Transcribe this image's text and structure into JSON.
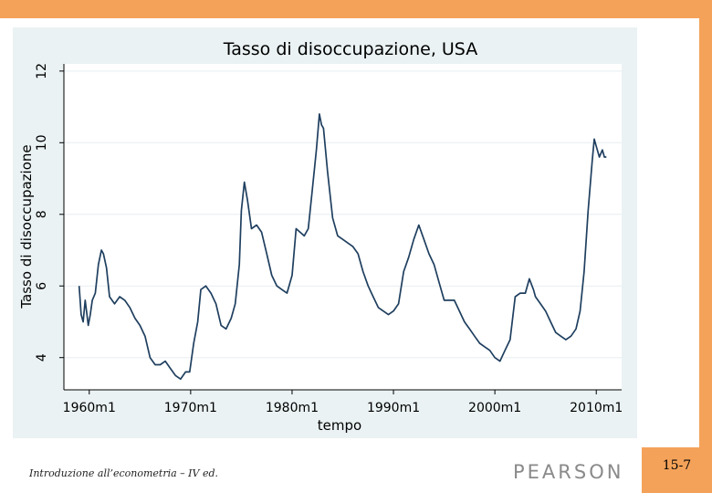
{
  "slide": {
    "footer": "Introduzione all’econometria – IV ed.",
    "publisher": "PEARSON",
    "page_number": "15-7",
    "accent_color": "#f4a259"
  },
  "chart_data": {
    "type": "line",
    "title": "Tasso di disoccupazione, USA",
    "xlabel": "tempo",
    "ylabel": "Tasso di disoccupazione",
    "x_ticks": [
      "1960m1",
      "1970m1",
      "1980m1",
      "1990m1",
      "2000m1",
      "2010m1"
    ],
    "x_tick_values": [
      1960,
      1970,
      1980,
      1990,
      2000,
      2010
    ],
    "y_ticks": [
      "4",
      "6",
      "8",
      "10",
      "12"
    ],
    "y_tick_values": [
      4,
      6,
      8,
      10,
      12
    ],
    "xlim": [
      1957.5,
      2012.5
    ],
    "ylim": [
      3.1,
      12.2
    ],
    "grid": true,
    "line_color": "#1f3f5f",
    "series": [
      {
        "x": [
          1959.0,
          1959.2,
          1959.4,
          1959.6,
          1959.9,
          1960.1,
          1960.3,
          1960.6,
          1960.9,
          1961.2,
          1961.4,
          1961.7,
          1962.0,
          1962.5,
          1963.0,
          1963.5,
          1964.0,
          1964.5,
          1965.0,
          1965.5,
          1966.0,
          1966.5,
          1967.0,
          1967.5,
          1968.0,
          1968.5,
          1969.0,
          1969.5,
          1969.9,
          1970.3,
          1970.7,
          1971.0,
          1971.5,
          1972.0,
          1972.5,
          1973.0,
          1973.5,
          1974.0,
          1974.4,
          1974.8,
          1975.0,
          1975.3,
          1975.6,
          1976.0,
          1976.5,
          1977.0,
          1977.5,
          1978.0,
          1978.5,
          1979.0,
          1979.5,
          1980.0,
          1980.4,
          1980.8,
          1981.2,
          1981.6,
          1982.0,
          1982.4,
          1982.7,
          1982.9,
          1983.1,
          1983.5,
          1984.0,
          1984.5,
          1985.0,
          1985.5,
          1986.0,
          1986.5,
          1987.0,
          1987.5,
          1988.0,
          1988.5,
          1989.0,
          1989.5,
          1990.0,
          1990.5,
          1991.0,
          1991.5,
          1992.0,
          1992.5,
          1993.0,
          1993.5,
          1994.0,
          1994.5,
          1995.0,
          1995.5,
          1996.0,
          1996.5,
          1997.0,
          1997.5,
          1998.0,
          1998.5,
          1999.0,
          1999.5,
          2000.0,
          2000.5,
          2001.0,
          2001.5,
          2002.0,
          2002.5,
          2003.0,
          2003.4,
          2003.8,
          2004.0,
          2004.5,
          2005.0,
          2005.5,
          2006.0,
          2006.5,
          2007.0,
          2007.5,
          2008.0,
          2008.4,
          2008.8,
          2009.2,
          2009.6,
          2009.8,
          2010.0,
          2010.3,
          2010.6,
          2010.8,
          2011.0
        ],
        "y": [
          6.0,
          5.2,
          5.0,
          5.6,
          4.9,
          5.2,
          5.6,
          5.8,
          6.6,
          7.0,
          6.9,
          6.5,
          5.7,
          5.5,
          5.7,
          5.6,
          5.4,
          5.1,
          4.9,
          4.6,
          4.0,
          3.8,
          3.8,
          3.9,
          3.7,
          3.5,
          3.4,
          3.6,
          3.6,
          4.4,
          5.0,
          5.9,
          6.0,
          5.8,
          5.5,
          4.9,
          4.8,
          5.1,
          5.5,
          6.6,
          8.1,
          8.9,
          8.4,
          7.6,
          7.7,
          7.5,
          6.9,
          6.3,
          6.0,
          5.9,
          5.8,
          6.3,
          7.6,
          7.5,
          7.4,
          7.6,
          8.7,
          9.8,
          10.8,
          10.5,
          10.4,
          9.2,
          7.9,
          7.4,
          7.3,
          7.2,
          7.1,
          6.9,
          6.4,
          6.0,
          5.7,
          5.4,
          5.3,
          5.2,
          5.3,
          5.5,
          6.4,
          6.8,
          7.3,
          7.7,
          7.3,
          6.9,
          6.6,
          6.1,
          5.6,
          5.6,
          5.6,
          5.3,
          5.0,
          4.8,
          4.6,
          4.4,
          4.3,
          4.2,
          4.0,
          3.9,
          4.2,
          4.5,
          5.7,
          5.8,
          5.8,
          6.2,
          5.9,
          5.7,
          5.5,
          5.3,
          5.0,
          4.7,
          4.6,
          4.5,
          4.6,
          4.8,
          5.3,
          6.4,
          8.1,
          9.5,
          10.1,
          9.9,
          9.6,
          9.8,
          9.6,
          9.6
        ]
      }
    ]
  }
}
